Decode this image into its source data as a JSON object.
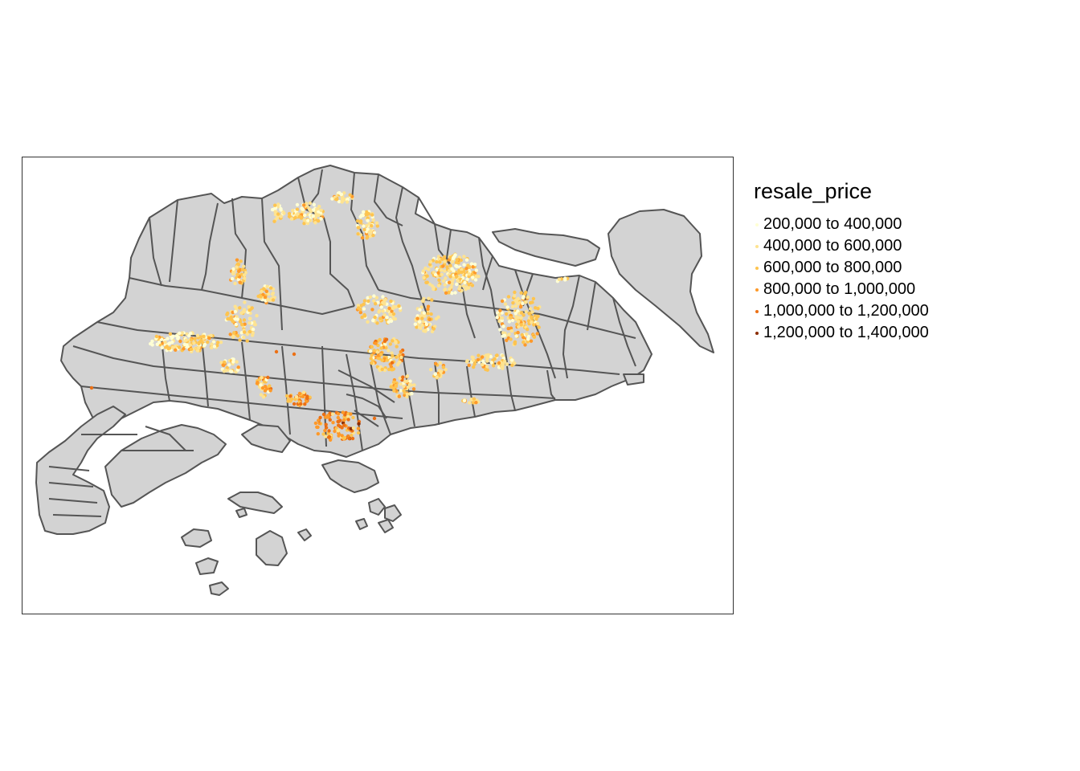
{
  "map": {
    "fill_color": "#d3d3d3",
    "border_color": "#555555",
    "variable": "resale_price",
    "price_range": [
      200000,
      1400000
    ]
  },
  "legend": {
    "title": "resale_price",
    "items": [
      {
        "label": "200,000 to 400,000",
        "color": "#ffffd4",
        "min": 200000,
        "max": 400000
      },
      {
        "label": "400,000 to 600,000",
        "color": "#fee391",
        "min": 400000,
        "max": 600000
      },
      {
        "label": "600,000 to 800,000",
        "color": "#fec44f",
        "min": 600000,
        "max": 800000
      },
      {
        "label": "800,000 to 1,000,000",
        "color": "#fe9929",
        "min": 800000,
        "max": 1000000
      },
      {
        "label": "1,000,000 to 1,200,000",
        "color": "#ec7014",
        "min": 1000000,
        "max": 1200000
      },
      {
        "label": "1,200,000 to 1,400,000",
        "color": "#8c2d04",
        "min": 1200000,
        "max": 1400000
      }
    ]
  }
}
